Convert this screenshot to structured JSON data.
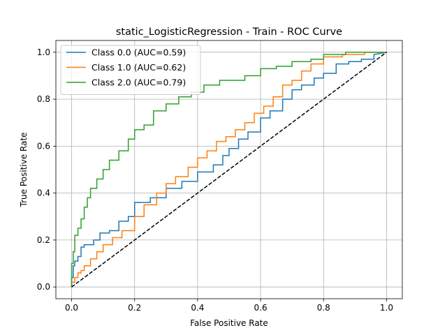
{
  "chart_data": {
    "type": "line",
    "title": "static_LogisticRegression - Train - ROC Curve",
    "xlabel": "False Positive Rate",
    "ylabel": "True Positive Rate",
    "xlim": [
      -0.05,
      1.05
    ],
    "ylim": [
      -0.05,
      1.05
    ],
    "xticks": [
      "0.0",
      "0.2",
      "0.4",
      "0.6",
      "0.8",
      "1.0"
    ],
    "yticks": [
      "0.0",
      "0.2",
      "0.4",
      "0.6",
      "0.8",
      "1.0"
    ],
    "grid": true,
    "legend_position": "top-left",
    "series": [
      {
        "name": "Class 0.0 (AUC=0.59)",
        "color": "#1f77b4",
        "x": [
          0.0,
          0.0,
          0.005,
          0.005,
          0.01,
          0.01,
          0.02,
          0.02,
          0.03,
          0.03,
          0.04,
          0.04,
          0.07,
          0.07,
          0.09,
          0.09,
          0.12,
          0.12,
          0.15,
          0.15,
          0.18,
          0.18,
          0.2,
          0.2,
          0.25,
          0.25,
          0.3,
          0.3,
          0.35,
          0.35,
          0.4,
          0.4,
          0.45,
          0.45,
          0.48,
          0.48,
          0.5,
          0.5,
          0.53,
          0.53,
          0.56,
          0.56,
          0.6,
          0.6,
          0.63,
          0.63,
          0.67,
          0.67,
          0.7,
          0.7,
          0.73,
          0.73,
          0.77,
          0.77,
          0.8,
          0.8,
          0.84,
          0.84,
          0.88,
          0.88,
          0.92,
          0.92,
          0.96,
          0.96,
          1.0
        ],
        "y": [
          0.0,
          0.04,
          0.04,
          0.09,
          0.09,
          0.11,
          0.11,
          0.13,
          0.13,
          0.17,
          0.17,
          0.18,
          0.18,
          0.2,
          0.2,
          0.23,
          0.23,
          0.24,
          0.24,
          0.28,
          0.28,
          0.3,
          0.3,
          0.36,
          0.36,
          0.38,
          0.38,
          0.42,
          0.42,
          0.45,
          0.45,
          0.49,
          0.49,
          0.52,
          0.52,
          0.56,
          0.56,
          0.59,
          0.59,
          0.63,
          0.63,
          0.66,
          0.66,
          0.72,
          0.72,
          0.75,
          0.75,
          0.8,
          0.8,
          0.84,
          0.84,
          0.86,
          0.86,
          0.89,
          0.89,
          0.91,
          0.91,
          0.95,
          0.95,
          0.96,
          0.96,
          0.97,
          0.97,
          0.99,
          1.0
        ]
      },
      {
        "name": "Class 1.0 (AUC=0.62)",
        "color": "#ff7f0e",
        "x": [
          0.0,
          0.0,
          0.01,
          0.01,
          0.02,
          0.02,
          0.03,
          0.03,
          0.04,
          0.04,
          0.06,
          0.06,
          0.08,
          0.08,
          0.1,
          0.1,
          0.13,
          0.13,
          0.16,
          0.16,
          0.2,
          0.2,
          0.23,
          0.23,
          0.27,
          0.27,
          0.3,
          0.3,
          0.33,
          0.33,
          0.37,
          0.37,
          0.4,
          0.4,
          0.43,
          0.43,
          0.46,
          0.46,
          0.49,
          0.49,
          0.52,
          0.52,
          0.55,
          0.55,
          0.58,
          0.58,
          0.61,
          0.61,
          0.64,
          0.64,
          0.67,
          0.67,
          0.7,
          0.7,
          0.73,
          0.73,
          0.76,
          0.76,
          0.8,
          0.8,
          0.86,
          0.86,
          0.93,
          0.93,
          1.0
        ],
        "y": [
          0.0,
          0.02,
          0.02,
          0.04,
          0.04,
          0.06,
          0.06,
          0.07,
          0.07,
          0.09,
          0.09,
          0.12,
          0.12,
          0.15,
          0.15,
          0.18,
          0.18,
          0.21,
          0.21,
          0.24,
          0.24,
          0.3,
          0.3,
          0.35,
          0.35,
          0.4,
          0.4,
          0.44,
          0.44,
          0.47,
          0.47,
          0.51,
          0.51,
          0.55,
          0.55,
          0.58,
          0.58,
          0.62,
          0.62,
          0.64,
          0.64,
          0.67,
          0.67,
          0.7,
          0.7,
          0.74,
          0.74,
          0.77,
          0.77,
          0.81,
          0.81,
          0.86,
          0.86,
          0.88,
          0.88,
          0.92,
          0.92,
          0.95,
          0.95,
          0.98,
          0.98,
          0.99,
          0.99,
          1.0,
          1.0
        ]
      },
      {
        "name": "Class 2.0 (AUC=0.79)",
        "color": "#2ca02c",
        "x": [
          0.0,
          0.0,
          0.005,
          0.005,
          0.01,
          0.01,
          0.02,
          0.02,
          0.03,
          0.03,
          0.04,
          0.04,
          0.05,
          0.05,
          0.06,
          0.06,
          0.08,
          0.08,
          0.1,
          0.1,
          0.12,
          0.12,
          0.15,
          0.15,
          0.18,
          0.18,
          0.2,
          0.2,
          0.23,
          0.23,
          0.26,
          0.26,
          0.3,
          0.3,
          0.34,
          0.34,
          0.38,
          0.38,
          0.42,
          0.42,
          0.47,
          0.47,
          0.55,
          0.55,
          0.6,
          0.6,
          0.65,
          0.65,
          0.7,
          0.7,
          0.76,
          0.76,
          0.8,
          0.8,
          0.87,
          0.87,
          0.92,
          0.92,
          1.0
        ],
        "y": [
          0.0,
          0.1,
          0.1,
          0.15,
          0.15,
          0.22,
          0.22,
          0.25,
          0.25,
          0.29,
          0.29,
          0.34,
          0.34,
          0.38,
          0.38,
          0.42,
          0.42,
          0.46,
          0.46,
          0.5,
          0.5,
          0.54,
          0.54,
          0.58,
          0.58,
          0.63,
          0.63,
          0.67,
          0.67,
          0.69,
          0.69,
          0.75,
          0.75,
          0.78,
          0.78,
          0.81,
          0.81,
          0.83,
          0.83,
          0.86,
          0.86,
          0.88,
          0.88,
          0.9,
          0.9,
          0.93,
          0.93,
          0.94,
          0.94,
          0.96,
          0.96,
          0.97,
          0.97,
          0.99,
          0.99,
          1.0,
          1.0,
          1.0,
          1.0
        ]
      },
      {
        "name": "",
        "color": "#000000",
        "dashed": true,
        "x": [
          0.0,
          1.0
        ],
        "y": [
          0.0,
          1.0
        ]
      }
    ]
  }
}
